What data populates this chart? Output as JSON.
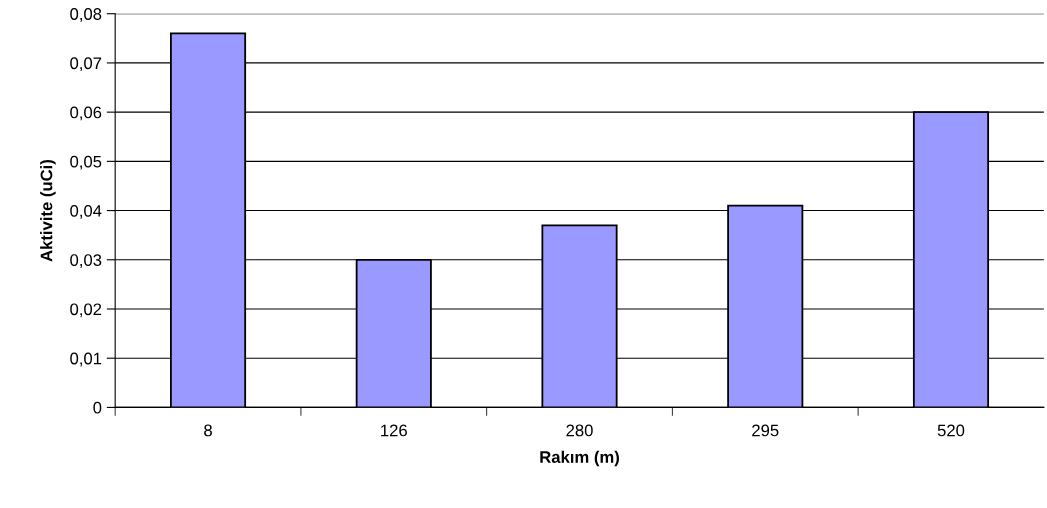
{
  "chart_data": {
    "type": "bar",
    "xlabel": "Rakım (m)",
    "ylabel": "Aktivite (uCi)",
    "categories": [
      "8",
      "126",
      "280",
      "295",
      "520"
    ],
    "values": [
      0.076,
      0.03,
      0.037,
      0.041,
      0.06
    ],
    "color": "#9999ff",
    "ylim": [
      0,
      0.08
    ],
    "yticks": [
      {
        "value": 0,
        "label": "0"
      },
      {
        "value": 0.01,
        "label": "0,01"
      },
      {
        "value": 0.02,
        "label": "0,02"
      },
      {
        "value": 0.03,
        "label": "0,03"
      },
      {
        "value": 0.04,
        "label": "0,04"
      },
      {
        "value": 0.05,
        "label": "0,05"
      },
      {
        "value": 0.06,
        "label": "0,06"
      },
      {
        "value": 0.07,
        "label": "0,07"
      },
      {
        "value": 0.08,
        "label": "0,08"
      }
    ],
    "grid": "y",
    "legend": false
  }
}
